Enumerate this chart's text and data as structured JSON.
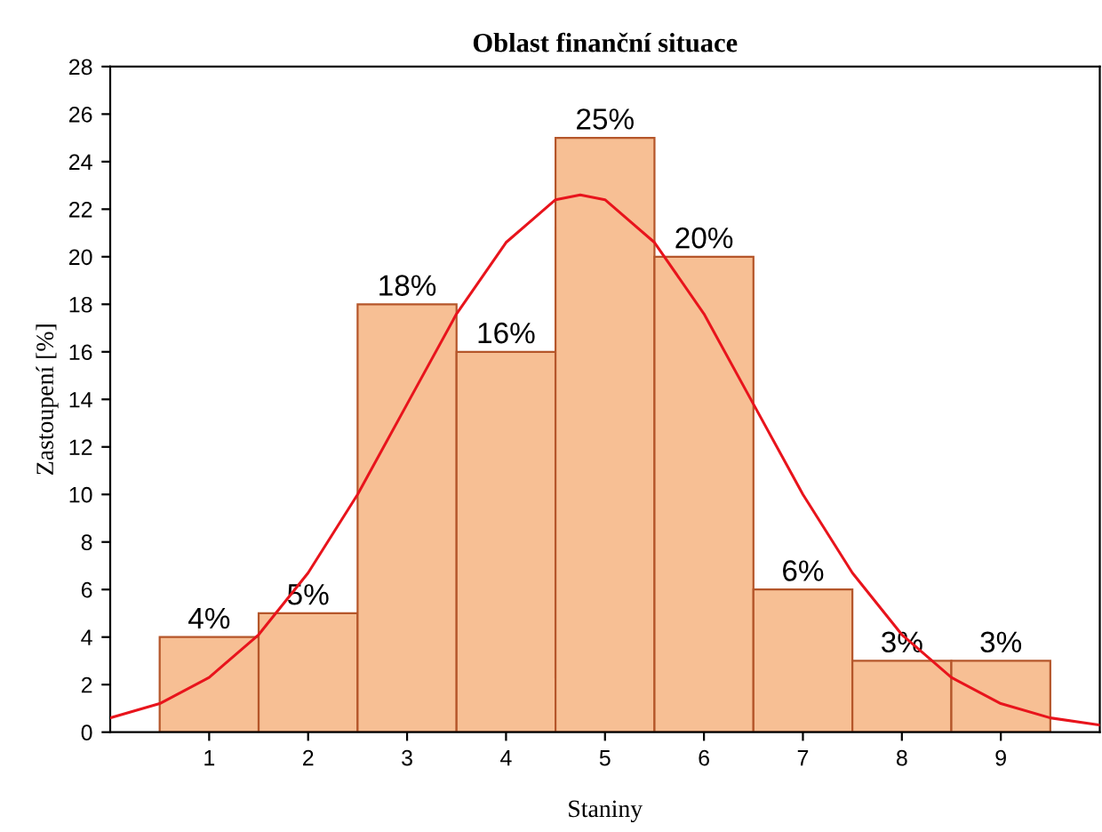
{
  "chart_data": {
    "type": "histogram",
    "title": "Oblast finanční situace",
    "xlabel": "Staniny",
    "ylabel": "Zastoupení [%]",
    "bins": [
      0.5,
      1.5,
      2.5,
      3.5,
      4.5,
      5.5,
      6.5,
      7.5,
      8.5,
      9.5
    ],
    "values": [
      4,
      5,
      18,
      16,
      25,
      20,
      6,
      3,
      3
    ],
    "value_labels": [
      "4%",
      "5%",
      "18%",
      "16%",
      "25%",
      "20%",
      "6%",
      "3%",
      "3%"
    ],
    "color": "#f7bf94",
    "series": [
      {
        "type": "line",
        "color": "#e8141c",
        "x": [
          0,
          0.5,
          1,
          1.5,
          2,
          2.5,
          3,
          3.5,
          4,
          4.5,
          4.75,
          5,
          5.5,
          6,
          6.5,
          7,
          7.5,
          8,
          8.5,
          9,
          9.5,
          10
        ],
        "values": [
          0.6,
          1.2,
          2.3,
          4.1,
          6.7,
          10.0,
          13.8,
          17.6,
          20.6,
          22.4,
          22.6,
          22.4,
          20.6,
          17.6,
          13.8,
          10.0,
          6.7,
          4.1,
          2.3,
          1.2,
          0.6,
          0.3
        ]
      }
    ],
    "xlim": [
      0,
      10
    ],
    "xticks": [
      1,
      2,
      3,
      4,
      5,
      6,
      7,
      8,
      9
    ],
    "ylim": [
      0,
      28
    ],
    "yticks": [
      0,
      2,
      4,
      6,
      8,
      10,
      12,
      14,
      16,
      18,
      20,
      22,
      24,
      26,
      28
    ],
    "grid": false,
    "legend": false
  }
}
